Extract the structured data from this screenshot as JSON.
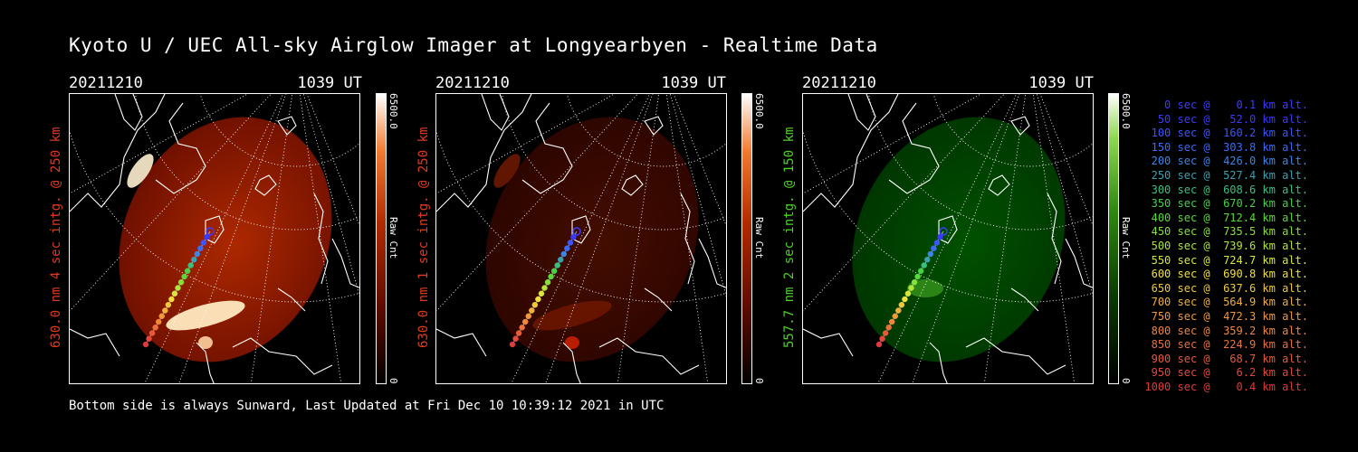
{
  "title": "Kyoto U / UEC All-sky Airglow Imager at Longyearbyen - Realtime Data",
  "footer": "Bottom side is always Sunward, Last Updated at Fri Dec 10 10:39:12 2021 in UTC",
  "panels": [
    {
      "date": "20211210",
      "time": "1039 UT",
      "side_label": "630.0 nm 4 sec intg. @ 250 km",
      "label_color": "#e03a1e",
      "cbar_max": "6500.0",
      "cbar_min": "0",
      "cbar_unit": "Raw Cnt",
      "colormap": "red",
      "brightness_level": 0.8
    },
    {
      "date": "20211210",
      "time": "1039 UT",
      "side_label": "630.0 nm 1 sec intg. @ 250 km",
      "label_color": "#e03a1e",
      "cbar_max": "6500.0",
      "cbar_min": "0",
      "cbar_unit": "Raw Cnt",
      "colormap": "red",
      "brightness_level": 0.25
    },
    {
      "date": "20211210",
      "time": "1039 UT",
      "side_label": "557.7 nm 2 sec intg. @ 150 km",
      "label_color": "#4fd02a",
      "cbar_max": "6500.0",
      "cbar_min": "0",
      "cbar_unit": "Raw Cnt",
      "colormap": "green",
      "brightness_level": 0.3
    }
  ],
  "legend": [
    {
      "text": "   0 sec @    0.1 km alt.",
      "color": "#3c3cff"
    },
    {
      "text": "  50 sec @   52.0 km alt.",
      "color": "#3a3aff"
    },
    {
      "text": " 100 sec @  160.2 km alt.",
      "color": "#3a55ff"
    },
    {
      "text": " 150 sec @  303.8 km alt.",
      "color": "#3a6aff"
    },
    {
      "text": " 200 sec @  426.0 km alt.",
      "color": "#3a86e8"
    },
    {
      "text": " 250 sec @  527.4 km alt.",
      "color": "#3aa0b0"
    },
    {
      "text": " 300 sec @  608.6 km alt.",
      "color": "#3ac080"
    },
    {
      "text": " 350 sec @  670.2 km alt.",
      "color": "#48d048"
    },
    {
      "text": " 400 sec @  712.4 km alt.",
      "color": "#5ad83a"
    },
    {
      "text": " 450 sec @  735.5 km alt.",
      "color": "#86e03a"
    },
    {
      "text": " 500 sec @  739.6 km alt.",
      "color": "#b0e63a"
    },
    {
      "text": " 550 sec @  724.7 km alt.",
      "color": "#d8e83a"
    },
    {
      "text": " 600 sec @  690.8 km alt.",
      "color": "#f0e03a"
    },
    {
      "text": " 650 sec @  637.6 km alt.",
      "color": "#f0c83a"
    },
    {
      "text": " 700 sec @  564.9 km alt.",
      "color": "#f0b03a"
    },
    {
      "text": " 750 sec @  472.3 km alt.",
      "color": "#f0983a"
    },
    {
      "text": " 800 sec @  359.2 km alt.",
      "color": "#f0863a"
    },
    {
      "text": " 850 sec @  224.9 km alt.",
      "color": "#ec703a"
    },
    {
      "text": " 900 sec @   68.7 km alt.",
      "color": "#e85a3a"
    },
    {
      "text": " 950 sec @    6.2 km alt.",
      "color": "#e4483a"
    },
    {
      "text": "1000 sec @    0.4 km alt.",
      "color": "#e03a3a"
    }
  ],
  "trajectory_colors": [
    "#3c3cff",
    "#3a3aff",
    "#3a55ff",
    "#3a6aff",
    "#3a86e8",
    "#3aa0b0",
    "#3ac080",
    "#48d048",
    "#5ad83a",
    "#86e03a",
    "#b0e63a",
    "#d8e83a",
    "#f0e03a",
    "#f0c83a",
    "#f0b03a",
    "#f0983a",
    "#f0863a",
    "#ec703a",
    "#e85a3a",
    "#e4483a",
    "#e03a3a"
  ]
}
